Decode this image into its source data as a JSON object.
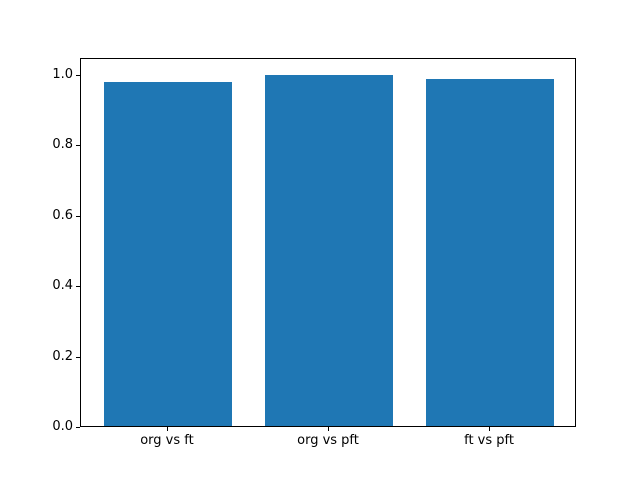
{
  "chart_data": {
    "type": "bar",
    "categories": [
      "org vs ft",
      "org vs pft",
      "ft vs pft"
    ],
    "values": [
      0.977,
      0.997,
      0.986
    ],
    "title": "",
    "xlabel": "",
    "ylabel": "",
    "xlim": [
      -0.54,
      2.54
    ],
    "ylim": [
      0,
      1.047
    ],
    "bar_centers": [
      0,
      1,
      2
    ],
    "bar_width_fraction": 0.8,
    "yticks": [
      0.0,
      0.2,
      0.4,
      0.6,
      0.8,
      1.0
    ],
    "ytick_labels": [
      "0.0",
      "0.2",
      "0.4",
      "0.6",
      "0.8",
      "1.0"
    ],
    "bar_color": "#1f77b4",
    "grid": false,
    "legend": null
  },
  "figure": {
    "background": "#ffffff",
    "axes_background": "#ffffff",
    "spine_color": "#000000",
    "tick_color": "#000000",
    "text_color": "#000000"
  }
}
